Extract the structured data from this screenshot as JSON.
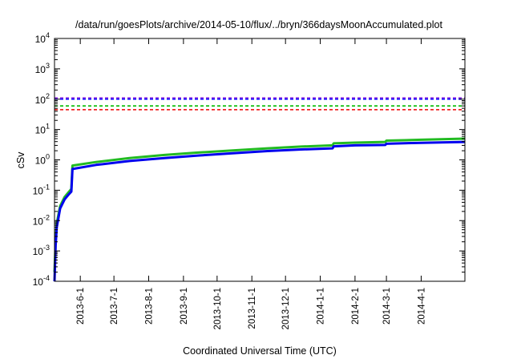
{
  "chart_data": {
    "type": "line",
    "title": "/data/run/goesPlots/archive/2014-05-10/flux/../bryn/366daysMoonAccumulated.plot",
    "xlabel": "Coordinated Universal Time (UTC)",
    "ylabel": "cSv",
    "y_scale": "log",
    "ylim": [
      0.0001,
      10000
    ],
    "xlim": [
      "2013-05-09",
      "2014-05-10"
    ],
    "grid": false,
    "y_ticks": [
      {
        "value": 0.0001,
        "base": "10",
        "exp": "-4"
      },
      {
        "value": 0.001,
        "base": "10",
        "exp": "-3"
      },
      {
        "value": 0.01,
        "base": "10",
        "exp": "-2"
      },
      {
        "value": 0.1,
        "base": "10",
        "exp": "-1"
      },
      {
        "value": 1,
        "base": "10",
        "exp": "0"
      },
      {
        "value": 10,
        "base": "10",
        "exp": "1"
      },
      {
        "value": 100,
        "base": "10",
        "exp": "2"
      },
      {
        "value": 1000,
        "base": "10",
        "exp": "3"
      },
      {
        "value": 10000,
        "base": "10",
        "exp": "4"
      }
    ],
    "x_ticks": [
      {
        "date": "2013-06-01",
        "label": "2013-6-1"
      },
      {
        "date": "2013-07-01",
        "label": "2013-7-1"
      },
      {
        "date": "2013-08-01",
        "label": "2013-8-1"
      },
      {
        "date": "2013-09-01",
        "label": "2013-9-1"
      },
      {
        "date": "2013-10-01",
        "label": "2013-10-1"
      },
      {
        "date": "2013-11-01",
        "label": "2013-11-1"
      },
      {
        "date": "2013-12-01",
        "label": "2013-12-1"
      },
      {
        "date": "2014-01-01",
        "label": "2014-1-1"
      },
      {
        "date": "2014-02-01",
        "label": "2014-2-1"
      },
      {
        "date": "2014-03-01",
        "label": "2014-3-1"
      },
      {
        "date": "2014-04-01",
        "label": "2014-4-1"
      }
    ],
    "reference_lines": [
      {
        "value": 110,
        "color": "#8a2be2"
      },
      {
        "value": 100,
        "color": "#0000ff"
      },
      {
        "value": 60,
        "color": "#00bb00"
      },
      {
        "value": 45,
        "color": "#ee0000"
      }
    ],
    "series": [
      {
        "color": "#22bb22",
        "x": [
          "2013-05-09",
          "2013-05-10",
          "2013-05-11",
          "2013-05-14",
          "2013-05-18",
          "2013-05-22",
          "2013-05-24",
          "2013-05-25",
          "2013-06-15",
          "2013-07-15",
          "2013-08-15",
          "2013-09-15",
          "2013-10-15",
          "2013-11-15",
          "2013-12-15",
          "2014-01-12",
          "2014-01-13",
          "2014-02-01",
          "2014-02-28",
          "2014-03-01",
          "2014-04-01",
          "2014-05-10"
        ],
        "y": [
          0.0002,
          0.002,
          0.008,
          0.03,
          0.06,
          0.09,
          0.11,
          0.65,
          0.85,
          1.15,
          1.45,
          1.75,
          2.05,
          2.4,
          2.75,
          3.0,
          3.5,
          3.7,
          3.9,
          4.3,
          4.6,
          5.0
        ]
      },
      {
        "color": "#0000ee",
        "x": [
          "2013-05-09",
          "2013-05-10",
          "2013-05-11",
          "2013-05-14",
          "2013-05-18",
          "2013-05-22",
          "2013-05-24",
          "2013-05-25",
          "2013-06-15",
          "2013-07-15",
          "2013-08-15",
          "2013-09-15",
          "2013-10-15",
          "2013-11-15",
          "2013-12-15",
          "2014-01-12",
          "2014-01-13",
          "2014-02-01",
          "2014-02-28",
          "2014-03-01",
          "2014-04-01",
          "2014-05-10"
        ],
        "y": [
          0.0001,
          0.0015,
          0.006,
          0.025,
          0.05,
          0.075,
          0.09,
          0.5,
          0.68,
          0.92,
          1.15,
          1.4,
          1.65,
          1.95,
          2.2,
          2.4,
          2.8,
          3.0,
          3.1,
          3.4,
          3.65,
          3.9
        ]
      }
    ]
  }
}
